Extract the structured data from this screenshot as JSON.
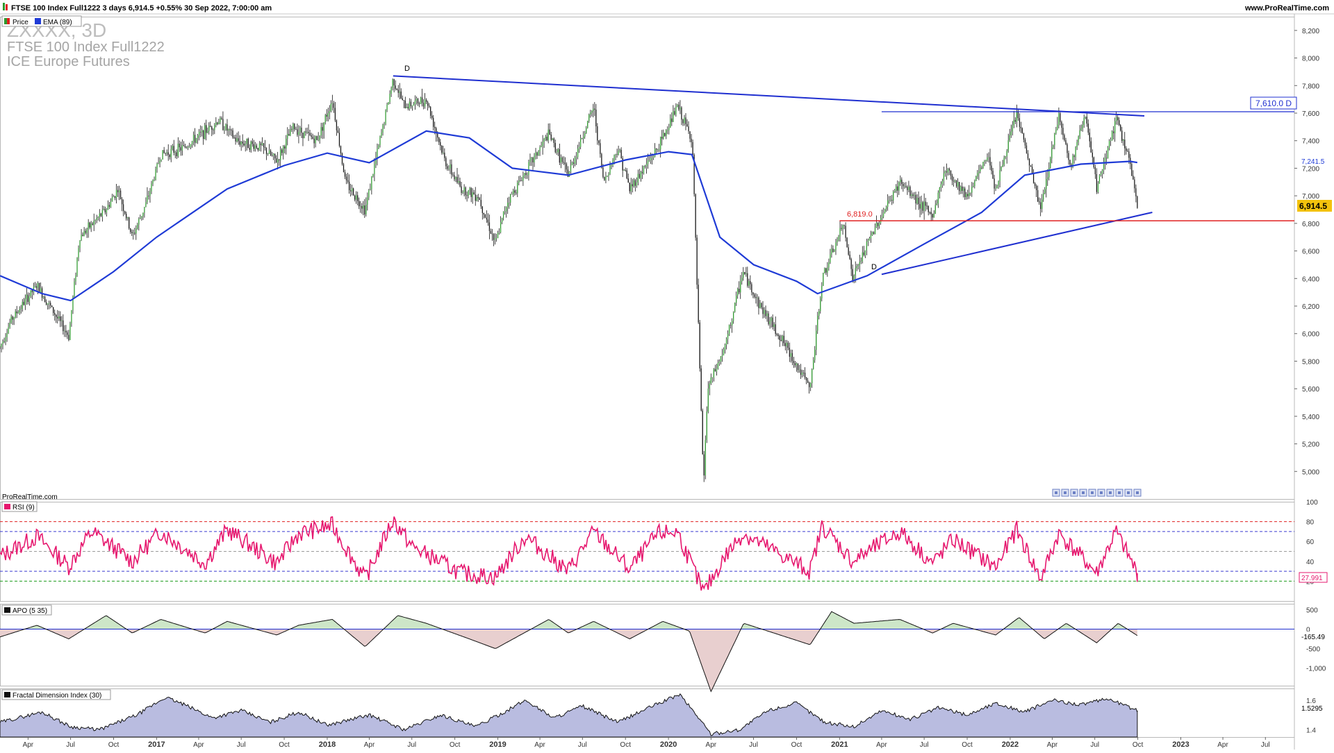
{
  "header": {
    "info": "FTSE 100 Index Full1222 3 days 6,914.5 +0.55% 30 Sep 2022, 7:00:00 am",
    "site": "www.ProRealTime.com"
  },
  "price_panel": {
    "legend_price": "Price",
    "legend_ema": "EMA (89)",
    "watermark_symbol": "ZXXXX, 3D",
    "watermark_name": "FTSE 100 Index Full1222",
    "watermark_exchange": "ICE Europe Futures",
    "brand": "ProRealTime.com",
    "price_label": "6,914.5",
    "ema_label": "7,241.5",
    "level_tag": "7,610.0 D",
    "level_support": "6,819.0",
    "marker_top": "D",
    "marker_low": "D"
  },
  "rsi_panel": {
    "legend": "RSI (9)",
    "value_label": "27.991"
  },
  "apo_panel": {
    "legend": "APO (5 35)",
    "value_label": "-165.49"
  },
  "fdi_panel": {
    "legend": "Fractal Dimension Index (30)",
    "value_label": "1.5295"
  },
  "colors": {
    "ema": "#1f3bd6",
    "trendline": "#1f2fd0",
    "support": "#e02020",
    "rsi": "#e6176e",
    "apo_pos_fill": "#cde6c8",
    "apo_neg_fill": "#e8cfcf",
    "fdi_fill": "#b9bce0",
    "candle_up": "#2e9a2e",
    "candle_down": "#111111",
    "price_label_bg": "#f3c20d"
  },
  "chart_data": {
    "type": "candlestick",
    "title": "FTSE 100 Index Full1222 3 days",
    "x_range": [
      "2016-02",
      "2023-09"
    ],
    "x_ticks": [
      {
        "date": "2016-04",
        "label": "Apr"
      },
      {
        "date": "2016-07",
        "label": "Jul"
      },
      {
        "date": "2016-10",
        "label": "Oct"
      },
      {
        "date": "2017-01",
        "label": "2017"
      },
      {
        "date": "2017-04",
        "label": "Apr"
      },
      {
        "date": "2017-07",
        "label": "Jul"
      },
      {
        "date": "2017-10",
        "label": "Oct"
      },
      {
        "date": "2018-01",
        "label": "2018"
      },
      {
        "date": "2018-04",
        "label": "Apr"
      },
      {
        "date": "2018-07",
        "label": "Jul"
      },
      {
        "date": "2018-10",
        "label": "Oct"
      },
      {
        "date": "2019-01",
        "label": "2019"
      },
      {
        "date": "2019-04",
        "label": "Apr"
      },
      {
        "date": "2019-07",
        "label": "Jul"
      },
      {
        "date": "2019-10",
        "label": "Oct"
      },
      {
        "date": "2020-01",
        "label": "2020"
      },
      {
        "date": "2020-04",
        "label": "Apr"
      },
      {
        "date": "2020-07",
        "label": "Jul"
      },
      {
        "date": "2020-10",
        "label": "Oct"
      },
      {
        "date": "2021-01",
        "label": "2021"
      },
      {
        "date": "2021-04",
        "label": "Apr"
      },
      {
        "date": "2021-07",
        "label": "Jul"
      },
      {
        "date": "2021-10",
        "label": "Oct"
      },
      {
        "date": "2022-01",
        "label": "2022"
      },
      {
        "date": "2022-04",
        "label": "Apr"
      },
      {
        "date": "2022-07",
        "label": "Jul"
      },
      {
        "date": "2022-10",
        "label": "Oct"
      },
      {
        "date": "2023-01",
        "label": "2023"
      },
      {
        "date": "2023-04",
        "label": "Apr"
      },
      {
        "date": "2023-07",
        "label": "Jul"
      }
    ],
    "price_axis": {
      "range": [
        4800,
        8300
      ],
      "ticks": [
        5000,
        5200,
        5400,
        5600,
        5800,
        6000,
        6200,
        6400,
        6600,
        6800,
        7000,
        7200,
        7400,
        7600,
        7800,
        8000,
        8200
      ],
      "tick_labels": [
        "5,000",
        "5,200",
        "5,400",
        "5,600",
        "5,800",
        "6,000",
        "6,200",
        "6,400",
        "6,600",
        "6,800",
        "7,000",
        "7,200",
        "7,400",
        "7,600",
        "7,800",
        "8,000",
        "8,200"
      ]
    },
    "price_path": [
      [
        "2016-02-01",
        5900
      ],
      [
        "2016-02-25",
        6100
      ],
      [
        "2016-04-20",
        6350
      ],
      [
        "2016-06-27",
        5980
      ],
      [
        "2016-07-20",
        6700
      ],
      [
        "2016-09-15",
        6900
      ],
      [
        "2016-10-10",
        7050
      ],
      [
        "2016-11-10",
        6700
      ],
      [
        "2016-12-10",
        6950
      ],
      [
        "2017-01-10",
        7300
      ],
      [
        "2017-03-01",
        7350
      ],
      [
        "2017-05-15",
        7550
      ],
      [
        "2017-06-20",
        7400
      ],
      [
        "2017-08-15",
        7350
      ],
      [
        "2017-09-15",
        7250
      ],
      [
        "2017-10-20",
        7500
      ],
      [
        "2017-12-10",
        7400
      ],
      [
        "2018-01-12",
        7700
      ],
      [
        "2018-02-09",
        7100
      ],
      [
        "2018-03-23",
        6900
      ],
      [
        "2018-05-22",
        7850
      ],
      [
        "2018-06-15",
        7650
      ],
      [
        "2018-08-01",
        7700
      ],
      [
        "2018-09-10",
        7250
      ],
      [
        "2018-10-15",
        7050
      ],
      [
        "2018-11-20",
        7000
      ],
      [
        "2018-12-27",
        6650
      ],
      [
        "2019-01-20",
        6950
      ],
      [
        "2019-04-20",
        7450
      ],
      [
        "2019-05-31",
        7150
      ],
      [
        "2019-07-25",
        7650
      ],
      [
        "2019-08-15",
        7100
      ],
      [
        "2019-09-15",
        7350
      ],
      [
        "2019-10-10",
        7050
      ],
      [
        "2019-12-10",
        7350
      ],
      [
        "2020-01-20",
        7650
      ],
      [
        "2020-02-21",
        7400
      ],
      [
        "2020-03-16",
        4900
      ],
      [
        "2020-03-25",
        5600
      ],
      [
        "2020-05-01",
        5900
      ],
      [
        "2020-06-08",
        6450
      ],
      [
        "2020-07-15",
        6200
      ],
      [
        "2020-09-01",
        5950
      ],
      [
        "2020-10-30",
        5600
      ],
      [
        "2020-11-25",
        6400
      ],
      [
        "2021-01-10",
        6800
      ],
      [
        "2021-01-29",
        6400
      ],
      [
        "2021-03-15",
        6750
      ],
      [
        "2021-05-10",
        7100
      ],
      [
        "2021-07-19",
        6850
      ],
      [
        "2021-08-15",
        7200
      ],
      [
        "2021-10-01",
        7000
      ],
      [
        "2021-11-15",
        7300
      ],
      [
        "2021-12-01",
        7050
      ],
      [
        "2022-01-15",
        7600
      ],
      [
        "2022-03-07",
        6900
      ],
      [
        "2022-04-15",
        7600
      ],
      [
        "2022-05-10",
        7200
      ],
      [
        "2022-06-10",
        7600
      ],
      [
        "2022-07-05",
        7050
      ],
      [
        "2022-08-15",
        7550
      ],
      [
        "2022-09-10",
        7300
      ],
      [
        "2022-09-30",
        6914.5
      ]
    ],
    "ema_89_path": [
      [
        "2016-02-01",
        6420
      ],
      [
        "2016-05-01",
        6290
      ],
      [
        "2016-07-01",
        6240
      ],
      [
        "2016-10-01",
        6450
      ],
      [
        "2017-01-01",
        6700
      ],
      [
        "2017-06-01",
        7050
      ],
      [
        "2017-10-01",
        7220
      ],
      [
        "2018-01-01",
        7310
      ],
      [
        "2018-04-01",
        7240
      ],
      [
        "2018-08-01",
        7470
      ],
      [
        "2018-11-01",
        7420
      ],
      [
        "2019-02-01",
        7200
      ],
      [
        "2019-06-01",
        7150
      ],
      [
        "2019-10-01",
        7260
      ],
      [
        "2020-01-01",
        7320
      ],
      [
        "2020-02-20",
        7300
      ],
      [
        "2020-04-20",
        6700
      ],
      [
        "2020-07-01",
        6500
      ],
      [
        "2020-10-01",
        6380
      ],
      [
        "2020-11-15",
        6290
      ],
      [
        "2021-03-01",
        6420
      ],
      [
        "2021-07-01",
        6650
      ],
      [
        "2021-11-01",
        6880
      ],
      [
        "2022-02-01",
        7150
      ],
      [
        "2022-06-01",
        7230
      ],
      [
        "2022-09-15",
        7250
      ],
      [
        "2022-09-30",
        7241.5
      ]
    ],
    "trendlines": [
      {
        "name": "resistance",
        "from": [
          "2018-05-22",
          7870
        ],
        "to": [
          "2022-10-15",
          7580
        ]
      },
      {
        "name": "support",
        "from": [
          "2021-04-01",
          6430
        ],
        "to": [
          "2022-11-01",
          6880
        ]
      },
      {
        "name": "level 7,610.0",
        "from": [
          "2021-04-01",
          7610
        ],
        "to": [
          "2023-09-30",
          7610
        ]
      },
      {
        "name": "level 6,819.0",
        "from": [
          "2021-01-01",
          6819
        ],
        "to": [
          "2023-09-30",
          6819
        ]
      }
    ],
    "rsi": {
      "range": [
        0,
        100
      ],
      "ticks": [
        20,
        40,
        60,
        80,
        100
      ],
      "levels": [
        80,
        70,
        50,
        30,
        20
      ],
      "last": 27.991,
      "path": [
        [
          "2016-02-01",
          45
        ],
        [
          "2016-04-20",
          65
        ],
        [
          "2016-06-27",
          35
        ],
        [
          "2016-08-15",
          70
        ],
        [
          "2016-11-10",
          40
        ],
        [
          "2017-01-10",
          70
        ],
        [
          "2017-04-15",
          38
        ],
        [
          "2017-06-01",
          72
        ],
        [
          "2017-09-15",
          38
        ],
        [
          "2017-11-01",
          68
        ],
        [
          "2018-01-12",
          76
        ],
        [
          "2018-03-23",
          22
        ],
        [
          "2018-05-22",
          82
        ],
        [
          "2018-07-01",
          55
        ],
        [
          "2018-10-15",
          28
        ],
        [
          "2018-12-27",
          24
        ],
        [
          "2019-03-01",
          65
        ],
        [
          "2019-05-31",
          30
        ],
        [
          "2019-07-25",
          70
        ],
        [
          "2019-10-10",
          32
        ],
        [
          "2019-12-10",
          68
        ],
        [
          "2020-01-20",
          70
        ],
        [
          "2020-03-16",
          8
        ],
        [
          "2020-05-01",
          45
        ],
        [
          "2020-06-08",
          68
        ],
        [
          "2020-10-30",
          30
        ],
        [
          "2020-11-25",
          76
        ],
        [
          "2021-01-29",
          40
        ],
        [
          "2021-05-10",
          70
        ],
        [
          "2021-07-19",
          38
        ],
        [
          "2021-09-01",
          62
        ],
        [
          "2021-12-01",
          34
        ],
        [
          "2022-01-15",
          72
        ],
        [
          "2022-03-07",
          22
        ],
        [
          "2022-04-15",
          68
        ],
        [
          "2022-07-05",
          28
        ],
        [
          "2022-08-15",
          70
        ],
        [
          "2022-09-30",
          27.991
        ]
      ]
    },
    "apo": {
      "ticks": [
        500,
        0,
        -500,
        -1000
      ],
      "tick_labels": [
        "500",
        "0",
        "-500",
        "-1,000"
      ],
      "range": [
        -1450,
        650
      ],
      "last": -165.49,
      "path": [
        [
          "2016-02-01",
          -200
        ],
        [
          "2016-04-20",
          100
        ],
        [
          "2016-06-27",
          -250
        ],
        [
          "2016-09-15",
          350
        ],
        [
          "2016-11-10",
          -100
        ],
        [
          "2017-01-10",
          250
        ],
        [
          "2017-04-15",
          -100
        ],
        [
          "2017-06-01",
          200
        ],
        [
          "2017-09-15",
          -150
        ],
        [
          "2017-11-01",
          100
        ],
        [
          "2018-01-12",
          250
        ],
        [
          "2018-03-23",
          -450
        ],
        [
          "2018-06-01",
          350
        ],
        [
          "2018-08-01",
          150
        ],
        [
          "2018-11-01",
          -250
        ],
        [
          "2018-12-27",
          -500
        ],
        [
          "2019-04-20",
          250
        ],
        [
          "2019-06-01",
          -100
        ],
        [
          "2019-07-25",
          200
        ],
        [
          "2019-10-10",
          -250
        ],
        [
          "2019-12-20",
          200
        ],
        [
          "2020-02-15",
          -50
        ],
        [
          "2020-04-01",
          -1600
        ],
        [
          "2020-06-10",
          150
        ],
        [
          "2020-10-30",
          -400
        ],
        [
          "2020-12-15",
          450
        ],
        [
          "2021-02-01",
          150
        ],
        [
          "2021-05-10",
          250
        ],
        [
          "2021-07-19",
          -100
        ],
        [
          "2021-09-01",
          150
        ],
        [
          "2021-12-01",
          -150
        ],
        [
          "2022-01-20",
          300
        ],
        [
          "2022-03-15",
          -250
        ],
        [
          "2022-05-01",
          150
        ],
        [
          "2022-07-05",
          -350
        ],
        [
          "2022-08-20",
          150
        ],
        [
          "2022-09-30",
          -165.49
        ]
      ]
    },
    "fdi": {
      "ticks": [
        1.6,
        1.4
      ],
      "range": [
        1.35,
        1.68
      ],
      "last": 1.5295,
      "path": [
        [
          "2016-02-01",
          1.45
        ],
        [
          "2016-05-01",
          1.52
        ],
        [
          "2016-07-01",
          1.42
        ],
        [
          "2016-09-01",
          1.4
        ],
        [
          "2016-11-20",
          1.5
        ],
        [
          "2017-01-20",
          1.62
        ],
        [
          "2017-03-01",
          1.57
        ],
        [
          "2017-05-01",
          1.48
        ],
        [
          "2017-07-01",
          1.53
        ],
        [
          "2017-09-01",
          1.45
        ],
        [
          "2017-11-01",
          1.52
        ],
        [
          "2018-01-01",
          1.43
        ],
        [
          "2018-04-01",
          1.5
        ],
        [
          "2018-06-15",
          1.4
        ],
        [
          "2018-09-01",
          1.5
        ],
        [
          "2018-11-15",
          1.42
        ],
        [
          "2019-01-15",
          1.52
        ],
        [
          "2019-03-01",
          1.6
        ],
        [
          "2019-05-01",
          1.48
        ],
        [
          "2019-07-01",
          1.56
        ],
        [
          "2019-09-15",
          1.45
        ],
        [
          "2019-11-20",
          1.55
        ],
        [
          "2020-01-25",
          1.64
        ],
        [
          "2020-03-01",
          1.5
        ],
        [
          "2020-04-01",
          1.37
        ],
        [
          "2020-06-01",
          1.4
        ],
        [
          "2020-08-01",
          1.53
        ],
        [
          "2020-10-01",
          1.58
        ],
        [
          "2020-12-01",
          1.45
        ],
        [
          "2021-02-01",
          1.42
        ],
        [
          "2021-04-01",
          1.53
        ],
        [
          "2021-06-01",
          1.47
        ],
        [
          "2021-08-01",
          1.55
        ],
        [
          "2021-10-01",
          1.5
        ],
        [
          "2021-12-01",
          1.58
        ],
        [
          "2022-02-01",
          1.52
        ],
        [
          "2022-04-01",
          1.6
        ],
        [
          "2022-06-01",
          1.57
        ],
        [
          "2022-08-01",
          1.61
        ],
        [
          "2022-09-30",
          1.5295
        ]
      ]
    }
  }
}
